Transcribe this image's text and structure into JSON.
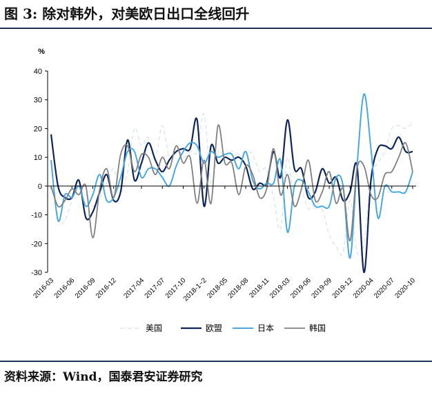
{
  "header": {
    "title": "图 3: 除对韩外，对美欧日出口全线回升"
  },
  "footer": {
    "source": "资料来源：Wind，国泰君安证券研究"
  },
  "colors": {
    "美国": "#dce6f0",
    "欧盟": "#0d2559",
    "日本": "#4aa8e0",
    "韩国": "#808080"
  },
  "chart_data": {
    "type": "line",
    "title": "",
    "xlabel": "",
    "ylabel": "%",
    "ylim": [
      -30,
      40
    ],
    "yticks": [
      40,
      30,
      20,
      10,
      0,
      -10,
      -20,
      -30
    ],
    "grid": false,
    "legend_position": "bottom",
    "xtick_labels": [
      "2016-03",
      "2016-06",
      "2016-09",
      "2016-12",
      "2017-04",
      "2017-07",
      "2017-10",
      "2018-1~2",
      "2018-05",
      "2018-08",
      "2018-11",
      "2019-03",
      "2019-06",
      "2019-09",
      "2019-12",
      "2020-04",
      "2020-07",
      "2020-10"
    ],
    "x": [
      "2016-03",
      "2016-04",
      "2016-05",
      "2016-06",
      "2016-07",
      "2016-08",
      "2016-09",
      "2016-10",
      "2016-11",
      "2016-12",
      "2017-01",
      "2017-02",
      "2017-03",
      "2017-04",
      "2017-05",
      "2017-06",
      "2017-07",
      "2017-08",
      "2017-09",
      "2017-10",
      "2017-11",
      "2017-12",
      "2018-1~2",
      "2018-03",
      "2018-04",
      "2018-05",
      "2018-06",
      "2018-07",
      "2018-08",
      "2018-09",
      "2018-10",
      "2018-11",
      "2018-12",
      "2019-1~2",
      "2019-03",
      "2019-04",
      "2019-05",
      "2019-06",
      "2019-07",
      "2019-08",
      "2019-09",
      "2019-10",
      "2019-11",
      "2019-12",
      "2020-1~2",
      "2020-03",
      "2020-04",
      "2020-05",
      "2020-06",
      "2020-07",
      "2020-08",
      "2020-09",
      "2020-10"
    ],
    "series": [
      {
        "name": "美国",
        "values": [
          8,
          -11,
          -12,
          -5,
          -1,
          -3,
          -7,
          -4,
          1,
          6,
          -2,
          5,
          20,
          14,
          17,
          10,
          21,
          10,
          14,
          10,
          12,
          12,
          25,
          1,
          12,
          10,
          12,
          11,
          12,
          11,
          5,
          6,
          -4,
          -15,
          10,
          -7,
          -2,
          -8,
          -6,
          -8,
          -17,
          -21,
          -23,
          -5,
          -23,
          -20,
          3,
          8,
          12,
          20,
          21,
          20,
          22
        ]
      },
      {
        "name": "欧盟",
        "values": [
          18,
          0,
          -4,
          -4,
          2,
          -11,
          -9,
          -2,
          4,
          -5,
          -2,
          16,
          2,
          8,
          15,
          9,
          5,
          9,
          12,
          13,
          13,
          23,
          -7,
          14,
          8,
          10,
          9,
          10,
          7,
          -1,
          1,
          1,
          12,
          3,
          23,
          6,
          6,
          -4,
          -2,
          6,
          1,
          3,
          -5,
          -2,
          7,
          -30,
          2,
          13,
          14,
          13,
          17,
          12,
          12
        ]
      },
      {
        "name": "日本",
        "values": [
          9,
          -12,
          -3,
          -4,
          0,
          -7,
          -3,
          4,
          -5,
          -4,
          3,
          12,
          12,
          3,
          6,
          6,
          3,
          0,
          7,
          12,
          15,
          14,
          8,
          12,
          10,
          11,
          11,
          6,
          12,
          2,
          -1,
          1,
          1,
          9,
          -16,
          0,
          2,
          -2,
          -7,
          -7,
          -7,
          3,
          0,
          -25,
          7,
          32,
          13,
          -11,
          0,
          -2,
          -2,
          -2,
          5
        ]
      },
      {
        "name": "韩国",
        "values": [
          0,
          -7,
          -5,
          -1,
          -3,
          0,
          -18,
          -1,
          6,
          -4,
          11,
          14,
          5,
          11,
          10,
          4,
          10,
          6,
          14,
          8,
          10,
          -6,
          9,
          -6,
          21,
          8,
          8,
          -3,
          7,
          4,
          -4,
          -1,
          13,
          -3,
          4,
          -7,
          -1,
          9,
          -5,
          -2,
          5,
          -6,
          -1,
          -19,
          6,
          7,
          -3,
          -4,
          4,
          5,
          10,
          15,
          5
        ]
      }
    ]
  }
}
